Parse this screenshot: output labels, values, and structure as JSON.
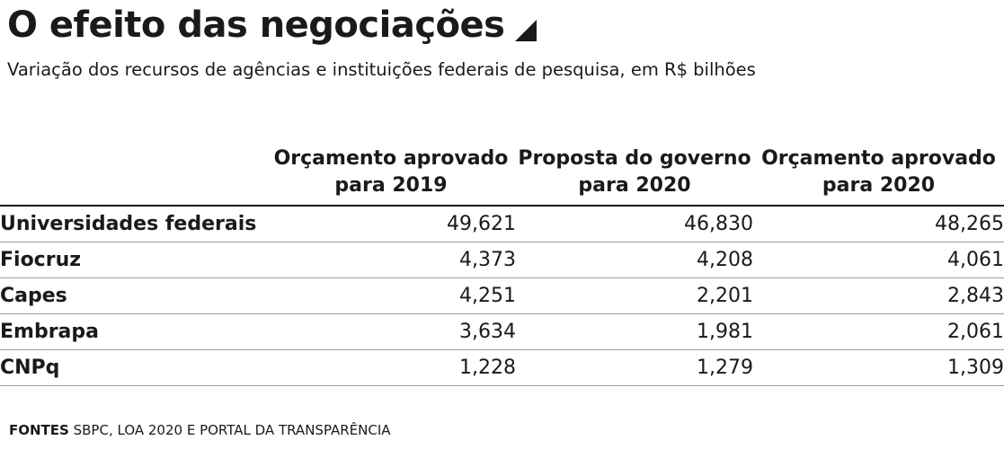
{
  "title": "O efeito das negociações",
  "subtitle": "Variação dos recursos de agências e instituições federais de pesquisa, em R$ bilhões",
  "source": {
    "label": "FONTES",
    "text": "SBPC, LOA 2020 E PORTAL DA TRANSPARÊNCIA"
  },
  "chart_data": {
    "type": "table",
    "title": "O efeito das negociações",
    "subtitle": "Variação dos recursos de agências e instituições federais de pesquisa, em R$ bilhões",
    "columns": [
      {
        "line1": "Orçamento aprovado",
        "line2": "para 2019"
      },
      {
        "line1": "Proposta do governo",
        "line2": "para 2020"
      },
      {
        "line1": "Orçamento aprovado",
        "line2": "para 2020"
      }
    ],
    "rows": [
      {
        "label": "Universidades federais",
        "values": [
          "49,621",
          "46,830",
          "48,265"
        ]
      },
      {
        "label": "Fiocruz",
        "values": [
          "4,373",
          "4,208",
          "4,061"
        ]
      },
      {
        "label": "Capes",
        "values": [
          "4,251",
          "2,201",
          "2,843"
        ]
      },
      {
        "label": "Embrapa",
        "values": [
          "3,634",
          "1,981",
          "2,061"
        ]
      },
      {
        "label": "CNPq",
        "values": [
          "1,228",
          "1,279",
          "1,309"
        ]
      }
    ]
  }
}
